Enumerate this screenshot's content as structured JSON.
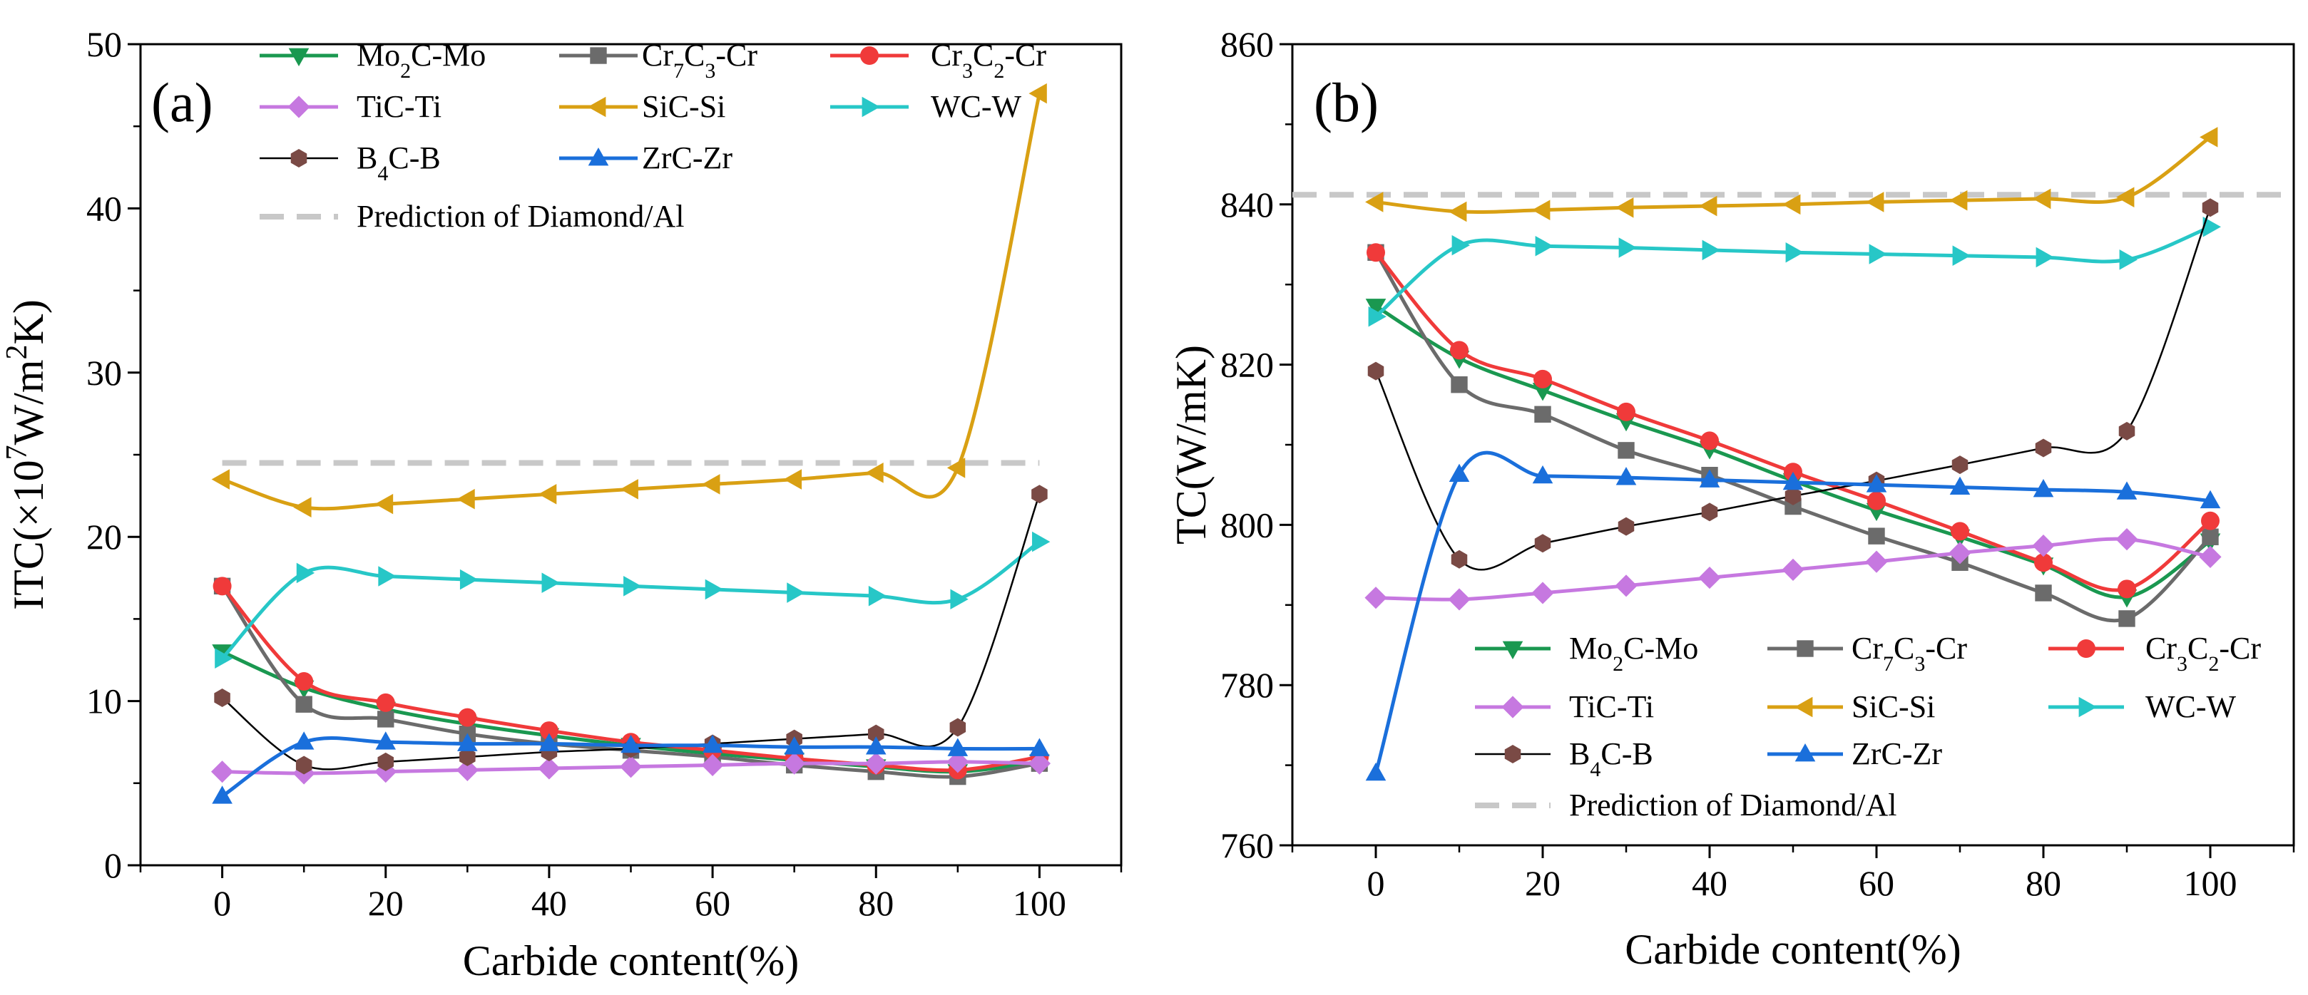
{
  "chart_data": [
    {
      "type": "line",
      "panel_label": "(a)",
      "xlabel": "Carbide content(%)",
      "ylabel": "ITC(×10⁷W/m²K)",
      "ylabel_parts": {
        "prefix": "ITC(×10",
        "sup1": "7",
        "middle": "W/m",
        "sup2": "2",
        "suffix": "K)"
      },
      "xlim": [
        -10,
        110
      ],
      "ylim": [
        0,
        50
      ],
      "xticks": [
        0,
        20,
        40,
        60,
        80,
        100
      ],
      "yticks": [
        0,
        10,
        20,
        30,
        40,
        50
      ],
      "grid": false,
      "legend_position": "top-left",
      "x": [
        0,
        10,
        20,
        30,
        40,
        50,
        60,
        70,
        80,
        90,
        100
      ],
      "series": [
        {
          "name": "Mo2C-Mo",
          "label_parts": [
            "Mo",
            "2",
            "C-Mo"
          ],
          "color": "#1a9850",
          "marker": "triangle-down",
          "values": [
            13.0,
            10.8,
            9.5,
            8.6,
            7.9,
            7.3,
            6.8,
            6.4,
            6.0,
            5.7,
            6.3
          ]
        },
        {
          "name": "Cr7C3-Cr",
          "label_parts": [
            "Cr",
            "7",
            "C",
            "3",
            "-Cr"
          ],
          "color": "#6b6b6b",
          "marker": "square",
          "values": [
            17.0,
            9.8,
            8.9,
            8.0,
            7.4,
            7.0,
            6.6,
            6.1,
            5.7,
            5.4,
            6.2
          ]
        },
        {
          "name": "Cr3C2-Cr",
          "label_parts": [
            "Cr",
            "3",
            "C",
            "2",
            "-Cr"
          ],
          "color": "#f03a3a",
          "marker": "circle",
          "values": [
            17.0,
            11.2,
            9.9,
            9.0,
            8.2,
            7.5,
            7.0,
            6.5,
            6.1,
            5.8,
            6.6
          ]
        },
        {
          "name": "TiC-Ti",
          "label_parts": [
            "TiC-Ti"
          ],
          "color": "#c678e0",
          "marker": "diamond",
          "values": [
            5.7,
            5.6,
            5.7,
            5.8,
            5.9,
            6.0,
            6.1,
            6.2,
            6.2,
            6.3,
            6.2
          ]
        },
        {
          "name": "SiC-Si",
          "label_parts": [
            "SiC-Si"
          ],
          "color": "#d9a013",
          "marker": "triangle-left",
          "values": [
            23.5,
            21.8,
            22.0,
            22.3,
            22.6,
            22.9,
            23.2,
            23.5,
            23.9,
            24.2,
            47.0
          ]
        },
        {
          "name": "WC-W",
          "label_parts": [
            "WC-W"
          ],
          "color": "#27c7c7",
          "marker": "triangle-right",
          "values": [
            12.6,
            17.8,
            17.6,
            17.4,
            17.2,
            17.0,
            16.8,
            16.6,
            16.4,
            16.2,
            19.7
          ]
        },
        {
          "name": "B4C-B",
          "label_parts": [
            "B",
            "4",
            "C-B"
          ],
          "color": "#7a4a45",
          "line_color": "#000000",
          "line_width": 2.5,
          "marker": "hexagon",
          "values": [
            10.2,
            6.1,
            6.3,
            6.6,
            6.9,
            7.1,
            7.4,
            7.7,
            8.0,
            8.4,
            22.6
          ]
        },
        {
          "name": "ZrC-Zr",
          "label_parts": [
            "ZrC-Zr"
          ],
          "color": "#1a6fdb",
          "marker": "triangle-up",
          "values": [
            4.2,
            7.5,
            7.5,
            7.4,
            7.4,
            7.3,
            7.3,
            7.2,
            7.2,
            7.1,
            7.1
          ]
        }
      ],
      "reference_line": {
        "name": "Prediction of Diamond/Al",
        "y": 24.5,
        "color": "#c8c8c8",
        "x_range": [
          0,
          100
        ]
      }
    },
    {
      "type": "line",
      "panel_label": "(b)",
      "xlabel": "Carbide content(%)",
      "ylabel": "TC(W/mK)",
      "xlim": [
        -10,
        110
      ],
      "ylim": [
        760,
        860
      ],
      "xticks": [
        0,
        20,
        40,
        60,
        80,
        100
      ],
      "yticks": [
        760,
        780,
        800,
        820,
        840,
        860
      ],
      "grid": false,
      "legend_position": "bottom-left",
      "x": [
        0,
        10,
        20,
        30,
        40,
        50,
        60,
        70,
        80,
        90,
        100
      ],
      "series": [
        {
          "name": "Mo2C-Mo",
          "label_parts": [
            "Mo",
            "2",
            "C-Mo"
          ],
          "color": "#1a9850",
          "marker": "triangle-down",
          "values": [
            827.3,
            820.8,
            816.8,
            813.0,
            809.5,
            805.5,
            801.8,
            798.5,
            795.0,
            791.0,
            798.0
          ]
        },
        {
          "name": "Cr7C3-Cr",
          "label_parts": [
            "Cr",
            "7",
            "C",
            "3",
            "-Cr"
          ],
          "color": "#6b6b6b",
          "marker": "square",
          "values": [
            834.0,
            817.5,
            813.8,
            809.3,
            806.2,
            802.3,
            798.6,
            795.3,
            791.5,
            788.3,
            798.5
          ]
        },
        {
          "name": "Cr3C2-Cr",
          "label_parts": [
            "Cr",
            "3",
            "C",
            "2",
            "-Cr"
          ],
          "color": "#f03a3a",
          "marker": "circle",
          "values": [
            834.0,
            821.8,
            818.2,
            814.1,
            810.5,
            806.6,
            803.0,
            799.2,
            795.3,
            792.0,
            800.5
          ]
        },
        {
          "name": "TiC-Ti",
          "label_parts": [
            "TiC-Ti"
          ],
          "color": "#c678e0",
          "marker": "diamond",
          "values": [
            790.9,
            790.7,
            791.5,
            792.4,
            793.4,
            794.4,
            795.4,
            796.5,
            797.4,
            798.2,
            796.0
          ]
        },
        {
          "name": "SiC-Si",
          "label_parts": [
            "SiC-Si"
          ],
          "color": "#d9a013",
          "marker": "triangle-left",
          "values": [
            840.3,
            839.1,
            839.3,
            839.6,
            839.8,
            840.0,
            840.3,
            840.5,
            840.7,
            840.9,
            848.4
          ]
        },
        {
          "name": "WC-W",
          "label_parts": [
            "WC-W"
          ],
          "color": "#27c7c7",
          "marker": "triangle-right",
          "values": [
            826.0,
            834.9,
            834.8,
            834.6,
            834.3,
            834.0,
            833.8,
            833.6,
            833.4,
            833.1,
            837.2
          ]
        },
        {
          "name": "B4C-B",
          "label_parts": [
            "B",
            "4",
            "C-B"
          ],
          "color": "#7a4a45",
          "line_color": "#000000",
          "line_width": 2.5,
          "marker": "hexagon",
          "values": [
            819.2,
            795.7,
            797.7,
            799.8,
            801.6,
            803.6,
            805.5,
            807.5,
            809.6,
            811.7,
            839.6
          ]
        },
        {
          "name": "ZrC-Zr",
          "label_parts": [
            "ZrC-Zr"
          ],
          "color": "#1a6fdb",
          "marker": "triangle-up",
          "values": [
            769.0,
            806.3,
            806.1,
            805.9,
            805.6,
            805.3,
            805.0,
            804.7,
            804.4,
            804.1,
            803.0
          ]
        }
      ],
      "reference_line": {
        "name": "Prediction of Diamond/Al",
        "y": 841.2,
        "color": "#c8c8c8",
        "x_range": [
          -10,
          110
        ]
      }
    }
  ]
}
